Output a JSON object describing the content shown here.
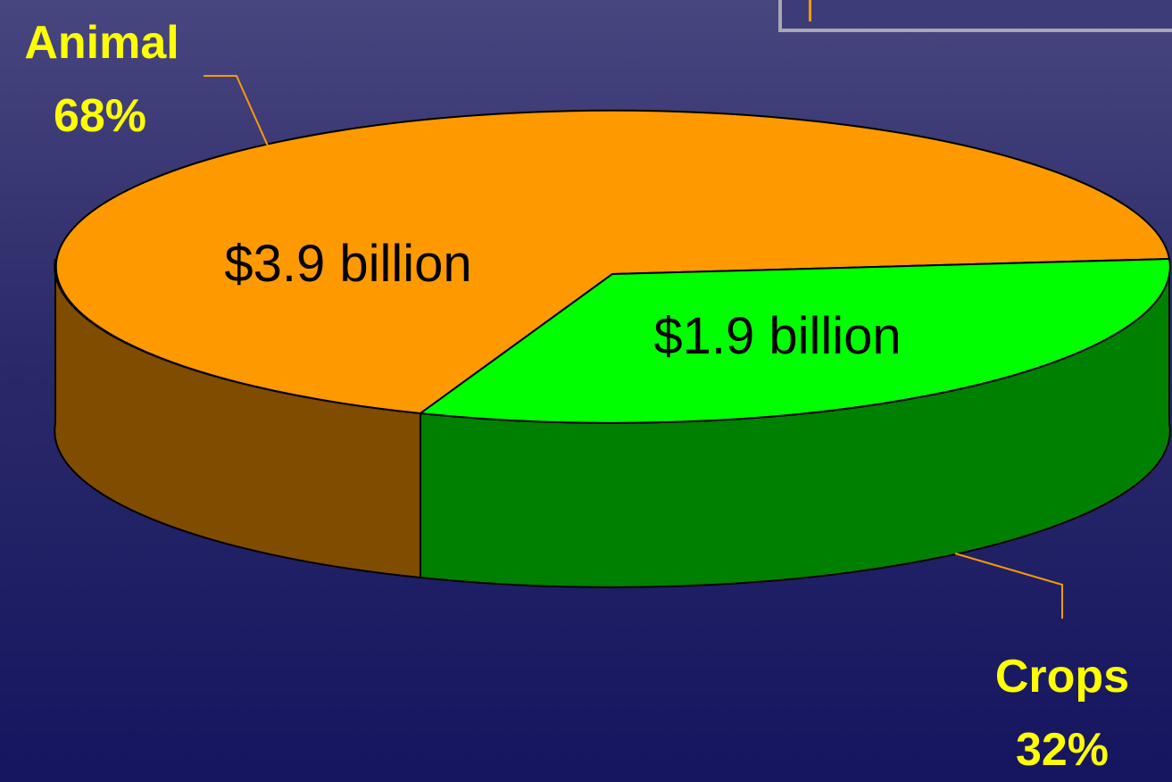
{
  "chart_data": {
    "type": "pie",
    "style": "3d",
    "slices": [
      {
        "category": "Animal",
        "percent": "68%",
        "value_label": "$3.9 billion",
        "value": 3.9,
        "top_color": "#ff9900",
        "side_color": "#7f4c00"
      },
      {
        "category": "Crops",
        "percent": "32%",
        "value_label": "$1.9 billion",
        "value": 1.9,
        "top_color": "#00ff00",
        "side_color": "#008000"
      }
    ],
    "leader_line_color": "#ff9900",
    "label_color": "#ffff00"
  }
}
